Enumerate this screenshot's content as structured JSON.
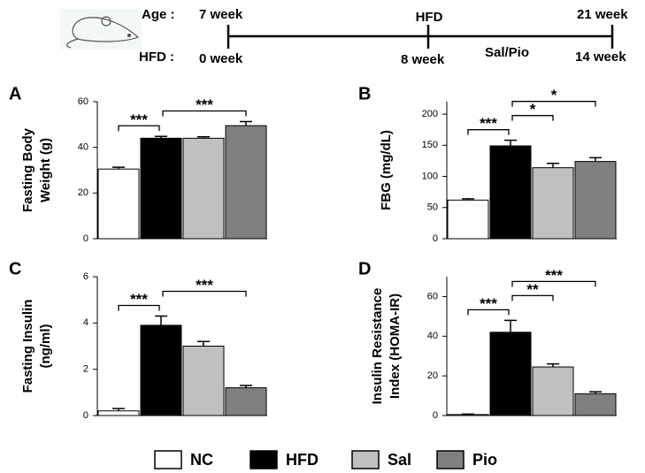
{
  "timeline": {
    "age_label": "Age :",
    "age_start": "7 week",
    "phase": "HFD",
    "age_end": "21 week",
    "hfd_label": "HFD :",
    "hfd_start": "0 week",
    "hfd_mid": "8 week",
    "treatment": "Sal/Pio",
    "hfd_end": "14 week"
  },
  "legend": {
    "items": [
      {
        "name": "NC",
        "color": "#ffffff"
      },
      {
        "name": "HFD",
        "color": "#000000"
      },
      {
        "name": "Sal",
        "color": "#c0c0c0"
      },
      {
        "name": "Pio",
        "color": "#808080"
      }
    ]
  },
  "chart_data": [
    {
      "type": "bar",
      "panel": "A",
      "ylabel": [
        "Fasting Body",
        "Weight (g)"
      ],
      "values": [
        30.5,
        44,
        44,
        49.5
      ],
      "errors": [
        0.8,
        0.8,
        0.6,
        1.8
      ],
      "ylim": [
        0,
        60
      ],
      "yticks": [
        0,
        20,
        40,
        60
      ],
      "annotations": [
        {
          "label": "***",
          "from": 0,
          "to": 1
        },
        {
          "label": "***",
          "from": 1,
          "to": 3
        }
      ]
    },
    {
      "type": "bar",
      "panel": "B",
      "ylabel": [
        "FBG (mg/dL)"
      ],
      "values": [
        62,
        149,
        114,
        124
      ],
      "errors": [
        2,
        9,
        7,
        6
      ],
      "ylim": [
        0,
        220
      ],
      "yticks": [
        0,
        50,
        100,
        150,
        200
      ],
      "annotations": [
        {
          "label": "***",
          "from": 0,
          "to": 1
        },
        {
          "label": "*",
          "from": 1,
          "to": 2
        },
        {
          "label": "*",
          "from": 1,
          "to": 3
        }
      ]
    },
    {
      "type": "bar",
      "panel": "C",
      "ylabel": [
        "Fasting  Insulin",
        "(ng/ml)"
      ],
      "values": [
        0.2,
        3.9,
        3.0,
        1.2
      ],
      "errors": [
        0.1,
        0.4,
        0.2,
        0.1
      ],
      "ylim": [
        0,
        6
      ],
      "yticks": [
        0,
        2,
        4,
        6
      ],
      "annotations": [
        {
          "label": "***",
          "from": 0,
          "to": 1
        },
        {
          "label": "***",
          "from": 1,
          "to": 3
        }
      ]
    },
    {
      "type": "bar",
      "panel": "D",
      "ylabel": [
        "Insulin Resistance",
        "Index (HOMA-IR)"
      ],
      "values": [
        0.5,
        42,
        24.5,
        11
      ],
      "errors": [
        0.2,
        6,
        1.5,
        1
      ],
      "ylim": [
        0,
        70
      ],
      "yticks": [
        0,
        20,
        40,
        60
      ],
      "annotations": [
        {
          "label": "***",
          "from": 0,
          "to": 1
        },
        {
          "label": "**",
          "from": 1,
          "to": 2
        },
        {
          "label": "***",
          "from": 1,
          "to": 3
        }
      ]
    }
  ]
}
